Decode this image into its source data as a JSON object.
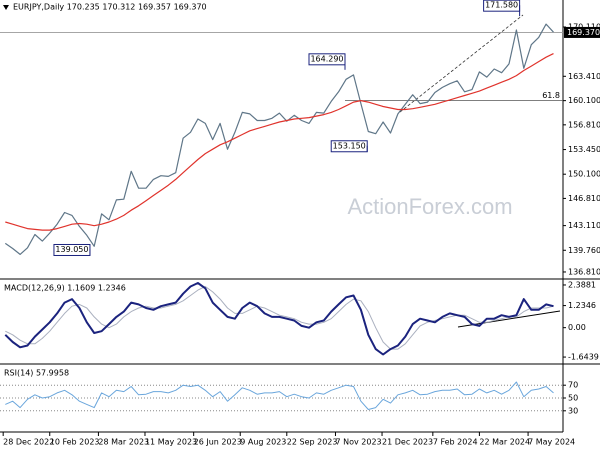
{
  "watermark": "ActionForex.com",
  "chart_data": {
    "type": "line",
    "x": [
      "2022-12-30",
      "2023-01-06",
      "2023-01-13",
      "2023-01-20",
      "2023-01-27",
      "2023-02-03",
      "2023-02-10",
      "2023-02-17",
      "2023-02-24",
      "2023-03-03",
      "2023-03-10",
      "2023-03-17",
      "2023-03-24",
      "2023-03-31",
      "2023-04-07",
      "2023-04-14",
      "2023-04-21",
      "2023-04-28",
      "2023-05-05",
      "2023-05-12",
      "2023-05-19",
      "2023-05-26",
      "2023-06-02",
      "2023-06-09",
      "2023-06-16",
      "2023-06-23",
      "2023-06-30",
      "2023-07-07",
      "2023-07-14",
      "2023-07-21",
      "2023-07-28",
      "2023-08-04",
      "2023-08-11",
      "2023-08-18",
      "2023-08-25",
      "2023-09-01",
      "2023-09-08",
      "2023-09-15",
      "2023-09-22",
      "2023-09-29",
      "2023-10-06",
      "2023-10-13",
      "2023-10-20",
      "2023-10-27",
      "2023-11-03",
      "2023-11-10",
      "2023-11-17",
      "2023-11-24",
      "2023-12-01",
      "2023-12-08",
      "2023-12-15",
      "2023-12-22",
      "2023-12-29",
      "2024-01-05",
      "2024-01-12",
      "2024-01-19",
      "2024-01-26",
      "2024-02-02",
      "2024-02-09",
      "2024-02-16",
      "2024-02-23",
      "2024-03-01",
      "2024-03-08",
      "2024-03-15",
      "2024-03-22",
      "2024-03-29",
      "2024-04-05",
      "2024-04-12",
      "2024-04-19",
      "2024-04-26",
      "2024-05-03",
      "2024-05-10",
      "2024-05-17",
      "2024-05-24",
      "2024-05-31"
    ],
    "xlim": [
      "2022-12-25",
      "2024-06-09"
    ],
    "xticks": [
      {
        "value": "2022-12-28",
        "label": "28 Dec 2022"
      },
      {
        "value": "2023-02-10",
        "label": "10 Feb 2023"
      },
      {
        "value": "2023-03-28",
        "label": "28 Mar 2023"
      },
      {
        "value": "2023-05-11",
        "label": "11 May 2023"
      },
      {
        "value": "2023-06-26",
        "label": "26 Jun 2023"
      },
      {
        "value": "2023-08-09",
        "label": "9 Aug 2023"
      },
      {
        "value": "2023-09-22",
        "label": "22 Sep 2023"
      },
      {
        "value": "2023-11-07",
        "label": "7 Nov 2023"
      },
      {
        "value": "2023-12-21",
        "label": "21 Dec 2023"
      },
      {
        "value": "2024-02-07",
        "label": "7 Feb 2024"
      },
      {
        "value": "2024-03-22",
        "label": "22 Mar 2024"
      },
      {
        "value": "2024-05-07",
        "label": "7 May 2024"
      }
    ],
    "panels": [
      {
        "type": "line",
        "title": "EURJPY,Daily  170.235 170.312 169.357 169.370",
        "ylim": [
          135.99,
          173.78
        ],
        "grid": false,
        "yticks": [
          {
            "value": 170.11,
            "label": "170.110"
          },
          {
            "value": 163.41,
            "label": "163.410"
          },
          {
            "value": 160.1,
            "label": "160.100"
          },
          {
            "value": 156.81,
            "label": "156.810"
          },
          {
            "value": 153.45,
            "label": "153.450"
          },
          {
            "value": 150.1,
            "label": "150.100"
          },
          {
            "value": 146.81,
            "label": "146.810"
          },
          {
            "value": 143.11,
            "label": "143.110"
          },
          {
            "value": 139.76,
            "label": "139.760"
          },
          {
            "value": 136.81,
            "label": "136.810"
          }
        ],
        "current": {
          "value": 169.37,
          "label": "169.370"
        },
        "series": [
          {
            "color": "#5f7688",
            "width": 1.2,
            "values": [
              140.7,
              140.0,
              139.2,
              140.1,
              141.9,
              141.0,
              142.1,
              143.3,
              144.9,
              144.5,
              143.0,
              141.8,
              140.3,
              144.7,
              143.9,
              146.6,
              146.7,
              150.5,
              148.2,
              148.2,
              149.4,
              149.9,
              149.8,
              150.3,
              155.0,
              155.8,
              157.6,
              157.0,
              154.8,
              157.0,
              153.5,
              155.8,
              158.5,
              158.3,
              157.4,
              157.4,
              157.7,
              158.4,
              157.3,
              158.1,
              157.4,
              157.0,
              158.5,
              158.4,
              160.0,
              161.3,
              163.0,
              163.6,
              159.7,
              155.9,
              155.6,
              157.2,
              155.7,
              158.3,
              159.6,
              160.9,
              159.7,
              159.9,
              161.2,
              161.9,
              162.4,
              162.8,
              161.3,
              161.6,
              164.0,
              163.3,
              164.4,
              163.9,
              165.1,
              169.7,
              164.5,
              167.7,
              168.7,
              170.5,
              169.4
            ]
          },
          {
            "color": "#e0332c",
            "width": 1.2,
            "values": [
              143.6,
              143.3,
              143.0,
              142.7,
              142.6,
              142.5,
              142.5,
              142.7,
              143.0,
              143.3,
              143.4,
              143.3,
              143.1,
              143.3,
              143.6,
              144.0,
              144.5,
              145.2,
              145.8,
              146.5,
              147.2,
              147.9,
              148.6,
              149.4,
              150.3,
              151.2,
              152.1,
              152.9,
              153.5,
              154.1,
              154.5,
              155.0,
              155.5,
              156.0,
              156.3,
              156.6,
              156.9,
              157.2,
              157.4,
              157.6,
              157.7,
              157.8,
              158.0,
              158.2,
              158.5,
              158.9,
              159.4,
              159.9,
              160.1,
              159.9,
              159.6,
              159.3,
              159.1,
              158.9,
              158.9,
              159.0,
              159.2,
              159.4,
              159.6,
              159.9,
              160.2,
              160.5,
              160.8,
              161.1,
              161.4,
              161.8,
              162.2,
              162.6,
              163.0,
              163.5,
              164.2,
              164.8,
              165.4,
              166.0,
              166.5
            ]
          }
        ],
        "annotations": [
          {
            "label": "171.580",
            "value": 171.58,
            "x": "2024-04-29"
          },
          {
            "label": "164.290",
            "value": 164.29,
            "x": "2023-11-16"
          },
          {
            "label": "153.150",
            "value": 153.15,
            "x": "2023-12-07"
          },
          {
            "label": "139.050",
            "value": 139.05,
            "x": "2023-03-20"
          }
        ],
        "levels": [
          {
            "label": "61.8",
            "value": 160.1,
            "x": "2023-11-16"
          }
        ]
      },
      {
        "type": "line",
        "title": "MACD(12,26,9) 1.1609 1.2346",
        "ylim": [
          -1.92,
          2.61
        ],
        "grid": false,
        "yticks": [
          2.3881,
          1.2346,
          {
            "value": 0,
            "label": "0.00"
          },
          -1.6439
        ],
        "series": [
          {
            "color": "#aab0bf",
            "width": 1,
            "values": [
              -0.2,
              -0.4,
              -0.7,
              -0.9,
              -0.9,
              -0.6,
              -0.2,
              0.3,
              0.8,
              1.2,
              1.3,
              1.1,
              0.6,
              0.2,
              0.0,
              0.2,
              0.6,
              0.9,
              1.1,
              1.2,
              1.1,
              1.1,
              1.2,
              1.3,
              1.5,
              1.8,
              2.1,
              2.3,
              2.0,
              1.6,
              1.1,
              0.8,
              0.8,
              1.0,
              1.2,
              1.1,
              0.9,
              0.7,
              0.6,
              0.5,
              0.3,
              0.2,
              0.2,
              0.3,
              0.5,
              0.9,
              1.3,
              1.6,
              1.5,
              0.9,
              0.0,
              -0.8,
              -1.2,
              -1.2,
              -0.9,
              -0.4,
              0.1,
              0.3,
              0.4,
              0.5,
              0.6,
              0.7,
              0.7,
              0.5,
              0.3,
              0.3,
              0.4,
              0.5,
              0.6,
              0.6,
              0.9,
              1.1,
              1.1,
              1.1,
              1.2
            ]
          },
          {
            "color": "#1b237e",
            "width": 2,
            "values": [
              -0.4,
              -0.8,
              -1.1,
              -1.0,
              -0.5,
              -0.1,
              0.3,
              0.8,
              1.4,
              1.6,
              1.1,
              0.3,
              -0.3,
              -0.2,
              0.2,
              0.6,
              0.9,
              1.4,
              1.3,
              1.1,
              1.0,
              1.2,
              1.3,
              1.4,
              1.9,
              2.3,
              2.5,
              2.2,
              1.4,
              1.0,
              0.6,
              0.5,
              1.1,
              1.4,
              1.2,
              0.8,
              0.6,
              0.6,
              0.5,
              0.4,
              0.1,
              0.0,
              0.3,
              0.4,
              0.9,
              1.3,
              1.7,
              1.8,
              1.0,
              -0.4,
              -1.2,
              -1.5,
              -1.2,
              -1.0,
              -0.5,
              0.2,
              0.5,
              0.4,
              0.3,
              0.6,
              0.8,
              0.7,
              0.6,
              0.2,
              0.1,
              0.5,
              0.5,
              0.7,
              0.6,
              0.7,
              1.6,
              1.0,
              1.0,
              1.3,
              1.2
            ]
          }
        ]
      },
      {
        "type": "line",
        "title": "RSI(14) 57.9958",
        "ylim": [
          0,
          100
        ],
        "grid": true,
        "yticks": [
          70,
          50,
          30
        ],
        "series": [
          {
            "color": "#6aa6dc",
            "width": 1,
            "values": [
              40,
              45,
              35,
              48,
              55,
              50,
              52,
              58,
              62,
              55,
              45,
              40,
              35,
              58,
              52,
              62,
              60,
              68,
              55,
              56,
              60,
              60,
              58,
              62,
              70,
              68,
              70,
              62,
              52,
              60,
              45,
              55,
              66,
              62,
              56,
              58,
              58,
              60,
              52,
              56,
              52,
              50,
              58,
              56,
              62,
              66,
              70,
              68,
              45,
              32,
              35,
              48,
              42,
              55,
              58,
              62,
              55,
              56,
              60,
              62,
              62,
              64,
              55,
              56,
              64,
              58,
              62,
              56,
              62,
              75,
              52,
              62,
              64,
              68,
              58
            ]
          }
        ]
      }
    ]
  }
}
